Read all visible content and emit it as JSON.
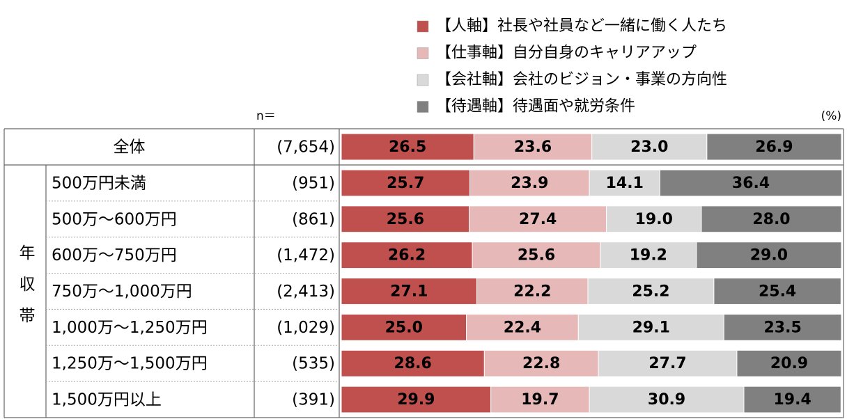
{
  "chart_data": {
    "type": "bar",
    "orientation": "horizontal",
    "stacked": true,
    "n_header": "n＝",
    "unit_label": "(%)",
    "group_label": "年収帯",
    "categories": [
      "全体",
      "500万円未満",
      "500万～600万円",
      "600万～750万円",
      "750万～1,000万円",
      "1,000万～1,250万円",
      "1,250万～1,500万円",
      "1,500万円以上"
    ],
    "n_values": [
      "(7,654)",
      "(951)",
      "(861)",
      "(1,472)",
      "(2,413)",
      "(1,029)",
      "(535)",
      "(391)"
    ],
    "xlim": [
      0,
      100
    ],
    "series": [
      {
        "name": "【人軸】社長や社員など一緒に働く人たち",
        "color": "#c0504d",
        "values": [
          26.5,
          25.7,
          25.6,
          26.2,
          27.1,
          25.0,
          28.6,
          29.9
        ],
        "value_labels": [
          "26.5",
          "25.7",
          "25.6",
          "26.2",
          "27.1",
          "25.0",
          "28.6",
          "29.9"
        ]
      },
      {
        "name": "【仕事軸】自分自身のキャリアアップ",
        "color": "#e6b9b8",
        "values": [
          23.6,
          23.9,
          27.4,
          25.6,
          22.2,
          22.4,
          22.8,
          19.7
        ],
        "value_labels": [
          "23.6",
          "23.9",
          "27.4",
          "25.6",
          "22.2",
          "22.4",
          "22.8",
          "19.7"
        ]
      },
      {
        "name": "【会社軸】会社のビジョン・事業の方向性",
        "color": "#d9d9d9",
        "values": [
          23.0,
          14.1,
          19.0,
          19.2,
          25.2,
          29.1,
          27.7,
          30.9
        ],
        "value_labels": [
          "23.0",
          "14.1",
          "19.0",
          "19.2",
          "25.2",
          "29.1",
          "27.7",
          "30.9"
        ]
      },
      {
        "name": "【待遇軸】待遇面や就労条件",
        "color": "#808080",
        "values": [
          26.9,
          36.4,
          28.0,
          29.0,
          25.4,
          23.5,
          20.9,
          19.4
        ],
        "value_labels": [
          "26.9",
          "36.4",
          "28.0",
          "29.0",
          "25.4",
          "23.5",
          "20.9",
          "19.4"
        ]
      }
    ]
  }
}
